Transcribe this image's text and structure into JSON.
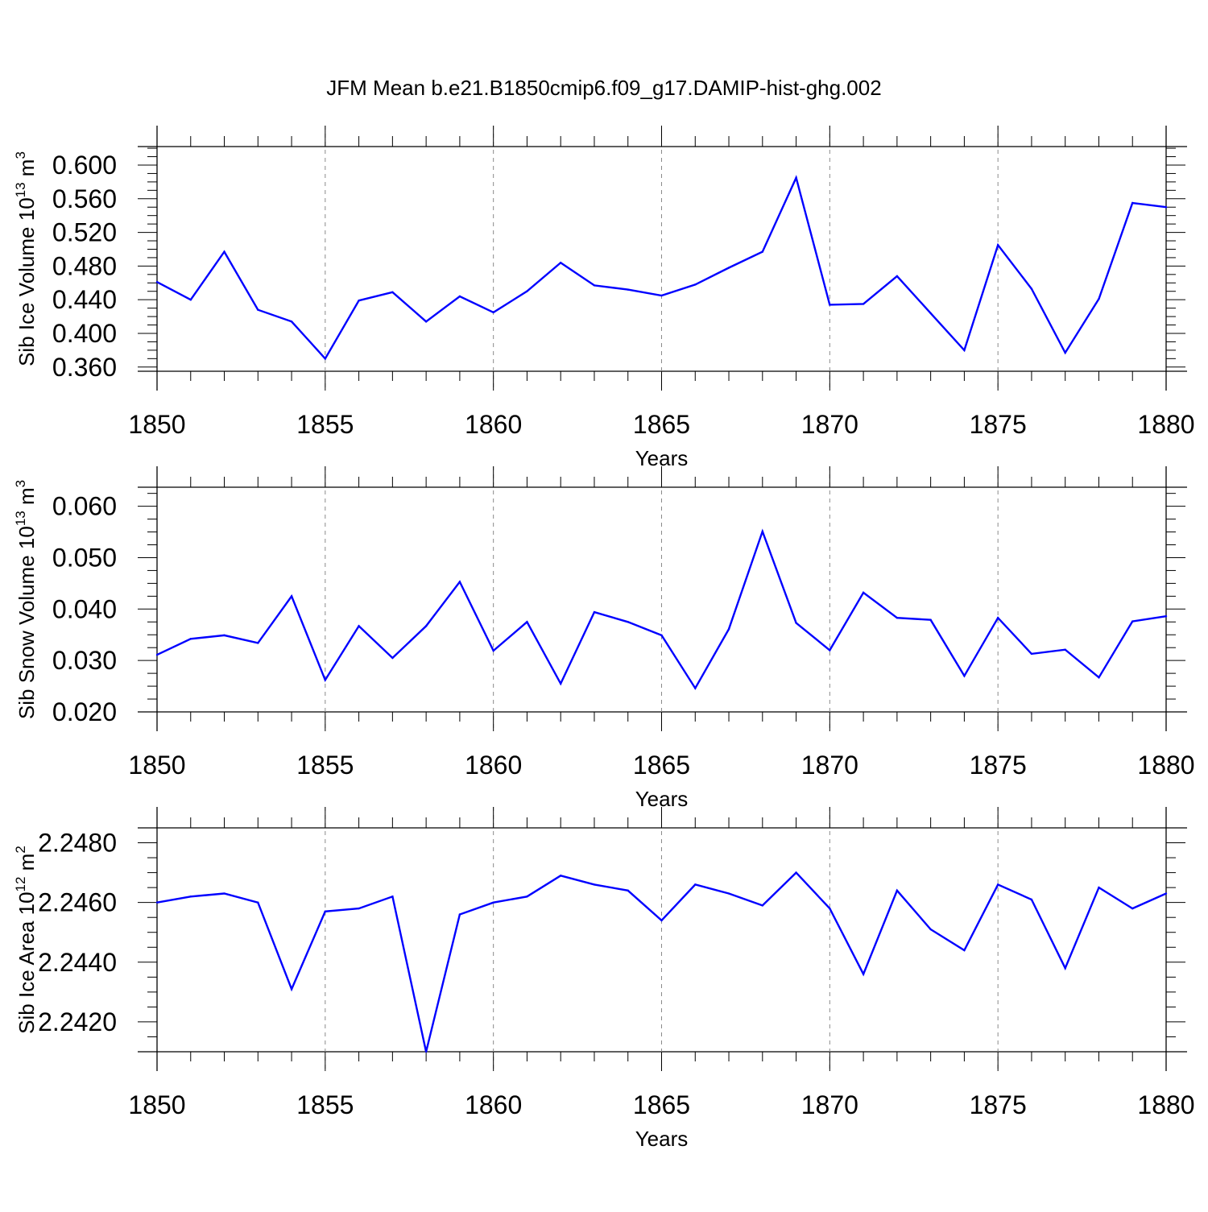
{
  "title": "JFM Mean b.e21.B1850cmip6.f09_g17.DAMIP-hist-ghg.002",
  "line_color": "#0000ff",
  "chart_data": [
    {
      "type": "line",
      "ylabel": "Sib Ice Volume 10",
      "ylabel_exp": "13",
      "ylabel_unit": " m",
      "ylabel_unit_exp": "3",
      "xlabel": "Years",
      "xlim": [
        1850,
        1880
      ],
      "ylim": [
        0.355,
        0.622
      ],
      "yticks": [
        0.36,
        0.4,
        0.44,
        0.48,
        0.52,
        0.56,
        0.6
      ],
      "ytick_labels": [
        "0.360",
        "0.400",
        "0.440",
        "0.480",
        "0.520",
        "0.560",
        "0.600"
      ],
      "xticks": [
        1850,
        1855,
        1860,
        1865,
        1870,
        1875,
        1880
      ],
      "xtick_labels": [
        "1850",
        "1855",
        "1860",
        "1865",
        "1870",
        "1875",
        "1880"
      ],
      "grid": "vertical dashed at major x ticks",
      "x": [
        1850,
        1851,
        1852,
        1853,
        1854,
        1855,
        1856,
        1857,
        1858,
        1859,
        1860,
        1861,
        1862,
        1863,
        1864,
        1865,
        1866,
        1867,
        1868,
        1869,
        1870,
        1871,
        1872,
        1873,
        1874,
        1875,
        1876,
        1877,
        1878,
        1879,
        1880
      ],
      "values": [
        0.461,
        0.44,
        0.497,
        0.428,
        0.414,
        0.37,
        0.439,
        0.449,
        0.414,
        0.444,
        0.425,
        0.45,
        0.484,
        0.457,
        0.452,
        0.445,
        0.458,
        0.478,
        0.497,
        0.585,
        0.434,
        0.435,
        0.468,
        0.424,
        0.38,
        0.505,
        0.453,
        0.377,
        0.441,
        0.555,
        0.55
      ]
    },
    {
      "type": "line",
      "ylabel": "Sib Snow Volume 10",
      "ylabel_exp": "13",
      "ylabel_unit": " m",
      "ylabel_unit_exp": "3",
      "xlabel": "Years",
      "xlim": [
        1850,
        1880
      ],
      "ylim": [
        0.02,
        0.0637
      ],
      "yticks": [
        0.02,
        0.03,
        0.04,
        0.05,
        0.06
      ],
      "ytick_labels": [
        "0.020",
        "0.030",
        "0.040",
        "0.050",
        "0.060"
      ],
      "xticks": [
        1850,
        1855,
        1860,
        1865,
        1870,
        1875,
        1880
      ],
      "xtick_labels": [
        "1850",
        "1855",
        "1860",
        "1865",
        "1870",
        "1875",
        "1880"
      ],
      "grid": "vertical dashed at major x ticks",
      "x": [
        1850,
        1851,
        1852,
        1853,
        1854,
        1855,
        1856,
        1857,
        1858,
        1859,
        1860,
        1861,
        1862,
        1863,
        1864,
        1865,
        1866,
        1867,
        1868,
        1869,
        1870,
        1871,
        1872,
        1873,
        1874,
        1875,
        1876,
        1877,
        1878,
        1879,
        1880
      ],
      "values": [
        0.0311,
        0.0342,
        0.0349,
        0.0334,
        0.0425,
        0.0262,
        0.0367,
        0.0305,
        0.0367,
        0.0453,
        0.0319,
        0.0375,
        0.0255,
        0.0394,
        0.0375,
        0.0349,
        0.0246,
        0.0361,
        0.0551,
        0.0373,
        0.032,
        0.0432,
        0.0383,
        0.0379,
        0.027,
        0.0383,
        0.0313,
        0.0321,
        0.0267,
        0.0376,
        0.0386
      ]
    },
    {
      "type": "line",
      "ylabel": "Sib Ice Area 10",
      "ylabel_exp": "12",
      "ylabel_unit": " m",
      "ylabel_unit_exp": "2",
      "xlabel": "Years",
      "xlim": [
        1850,
        1880
      ],
      "ylim": [
        2.241,
        2.2485
      ],
      "yticks": [
        2.242,
        2.244,
        2.246,
        2.248
      ],
      "ytick_labels": [
        "2.2420",
        "2.2440",
        "2.2460",
        "2.2480"
      ],
      "xticks": [
        1850,
        1855,
        1860,
        1865,
        1870,
        1875,
        1880
      ],
      "xtick_labels": [
        "1850",
        "1855",
        "1860",
        "1865",
        "1870",
        "1875",
        "1880"
      ],
      "grid": "vertical dashed at major x ticks",
      "x": [
        1850,
        1851,
        1852,
        1853,
        1854,
        1855,
        1856,
        1857,
        1858,
        1859,
        1860,
        1861,
        1862,
        1863,
        1864,
        1865,
        1866,
        1867,
        1868,
        1869,
        1870,
        1871,
        1872,
        1873,
        1874,
        1875,
        1876,
        1877,
        1878,
        1879,
        1880
      ],
      "values": [
        2.246,
        2.2462,
        2.2463,
        2.246,
        2.2431,
        2.2457,
        2.2458,
        2.2462,
        2.241,
        2.2456,
        2.246,
        2.2462,
        2.2469,
        2.2466,
        2.2464,
        2.2454,
        2.2466,
        2.2463,
        2.2459,
        2.247,
        2.2458,
        2.2436,
        2.2464,
        2.2451,
        2.2444,
        2.2466,
        2.2461,
        2.2438,
        2.2465,
        2.2458,
        2.2463
      ]
    }
  ]
}
